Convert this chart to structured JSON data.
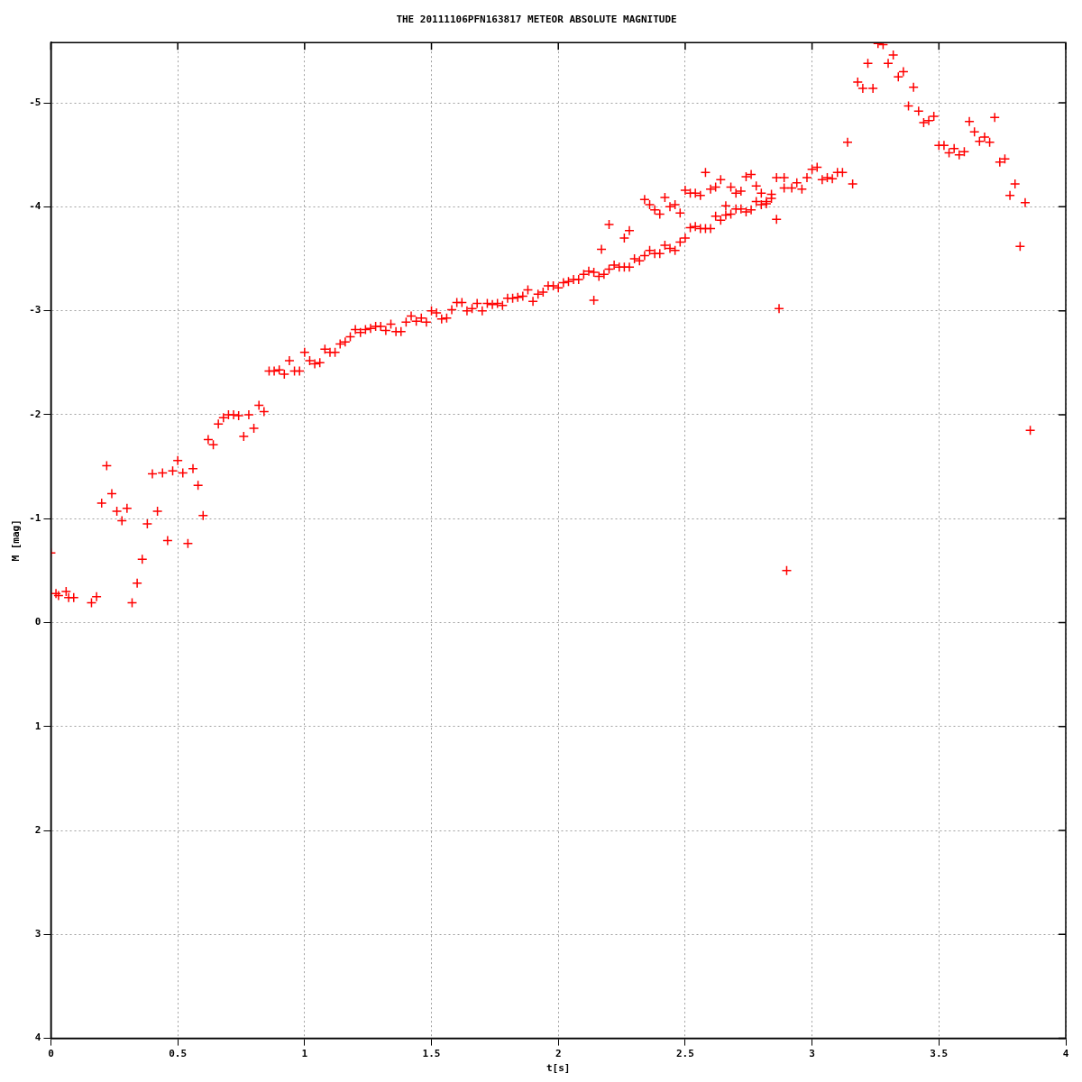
{
  "chart_data": {
    "type": "scatter",
    "title": "THE 20111106PFN163817 METEOR ABSOLUTE MAGNITUDE",
    "xlabel": "t[s]",
    "ylabel": "M [mag]",
    "xlim": [
      0,
      4
    ],
    "xticks": [
      0,
      0.5,
      1,
      1.5,
      2,
      2.5,
      3,
      3.5,
      4
    ],
    "ylim": [
      4,
      -5.58
    ],
    "yticks": [
      -5,
      -4,
      -3,
      -2,
      -1,
      0,
      1,
      2,
      3,
      4
    ],
    "grid": true,
    "legend": false,
    "marker": "cross",
    "series": [
      {
        "color": "#ff0000",
        "x": [
          0,
          0.02,
          0.03,
          0.06,
          0.07,
          0.09,
          0.16,
          0.18,
          0.2,
          0.22,
          0.24,
          0.26,
          0.28,
          0.3,
          0.32,
          0.34,
          0.36,
          0.38,
          0.4,
          0.42,
          0.44,
          0.46,
          0.48,
          0.5,
          0.52,
          0.54,
          0.56,
          0.58,
          0.6,
          0.62,
          0.64,
          0.66,
          0.68,
          0.7,
          0.72,
          0.74,
          0.76,
          0.78,
          0.8,
          0.82,
          0.84,
          0.86,
          0.88,
          0.9,
          0.92,
          0.94,
          0.96,
          0.98,
          1,
          1.02,
          1.04,
          1.06,
          1.08,
          1.1,
          1.12,
          1.14,
          1.16,
          1.18,
          1.2,
          1.22,
          1.24,
          1.26,
          1.28,
          1.3,
          1.32,
          1.34,
          1.36,
          1.38,
          1.4,
          1.42,
          1.44,
          1.46,
          1.48,
          1.5,
          1.52,
          1.54,
          1.56,
          1.58,
          1.6,
          1.62,
          1.64,
          1.66,
          1.68,
          1.7,
          1.72,
          1.74,
          1.76,
          1.78,
          1.8,
          1.82,
          1.84,
          1.86,
          1.88,
          1.9,
          1.92,
          1.94,
          1.96,
          1.98,
          2,
          2.02,
          2.04,
          2.06,
          2.08,
          2.1,
          2.12,
          2.14,
          2.14,
          2.16,
          2.17,
          2.18,
          2.2,
          2.2,
          2.22,
          2.24,
          2.26,
          2.26,
          2.28,
          2.28,
          2.3,
          2.32,
          2.34,
          2.34,
          2.36,
          2.36,
          2.38,
          2.38,
          2.4,
          2.4,
          2.42,
          2.42,
          2.44,
          2.44,
          2.46,
          2.46,
          2.48,
          2.48,
          2.5,
          2.5,
          2.52,
          2.52,
          2.54,
          2.54,
          2.56,
          2.56,
          2.58,
          2.58,
          2.6,
          2.6,
          2.62,
          2.62,
          2.64,
          2.64,
          2.66,
          2.66,
          2.68,
          2.68,
          2.7,
          2.7,
          2.72,
          2.72,
          2.74,
          2.74,
          2.76,
          2.76,
          2.78,
          2.78,
          2.8,
          2.8,
          2.82,
          2.82,
          2.84,
          2.84,
          2.86,
          2.86,
          2.87,
          2.89,
          2.89,
          2.9,
          2.92,
          2.94,
          2.96,
          2.98,
          3,
          3.02,
          3.04,
          3.06,
          3.08,
          3.1,
          3.12,
          3.14,
          3.16,
          3.18,
          3.2,
          3.22,
          3.24,
          3.26,
          3.28,
          3.3,
          3.32,
          3.34,
          3.36,
          3.38,
          3.4,
          3.42,
          3.44,
          3.46,
          3.48,
          3.5,
          3.52,
          3.54,
          3.56,
          3.58,
          3.6,
          3.62,
          3.64,
          3.66,
          3.68,
          3.7,
          3.72,
          3.74,
          3.76,
          3.78,
          3.8,
          3.82,
          3.84,
          3.86
        ],
        "values": [
          -0.67,
          -0.28,
          -0.26,
          -0.3,
          -0.24,
          -0.24,
          -0.19,
          -0.25,
          -1.15,
          -1.51,
          -1.24,
          -1.07,
          -0.98,
          -1.1,
          -0.19,
          -0.38,
          -0.61,
          -0.95,
          -1.43,
          -1.07,
          -1.44,
          -0.79,
          -1.46,
          -1.56,
          -1.44,
          -0.76,
          -1.48,
          -1.32,
          -1.03,
          -1.76,
          -1.71,
          -1.91,
          -1.97,
          -2,
          -2,
          -1.99,
          -1.79,
          -2,
          -1.87,
          -2.09,
          -2.03,
          -2.42,
          -2.42,
          -2.43,
          -2.39,
          -2.52,
          -2.42,
          -2.42,
          -2.6,
          -2.52,
          -2.49,
          -2.5,
          -2.63,
          -2.6,
          -2.6,
          -2.68,
          -2.7,
          -2.75,
          -2.82,
          -2.79,
          -2.82,
          -2.83,
          -2.85,
          -2.85,
          -2.81,
          -2.87,
          -2.8,
          -2.8,
          -2.89,
          -2.95,
          -2.9,
          -2.93,
          -2.89,
          -3,
          -2.98,
          -2.92,
          -2.93,
          -3.01,
          -3.08,
          -3.08,
          -3,
          -3.02,
          -3.07,
          -3,
          -3.07,
          -3.06,
          -3.07,
          -3.05,
          -3.12,
          -3.12,
          -3.13,
          -3.14,
          -3.2,
          -3.09,
          -3.16,
          -3.18,
          -3.24,
          -3.24,
          -3.22,
          -3.27,
          -3.28,
          -3.3,
          -3.3,
          -3.35,
          -3.38,
          -3.1,
          -3.37,
          -3.33,
          -3.59,
          -3.35,
          -3.83,
          -3.4,
          -3.44,
          -3.42,
          -3.7,
          -3.42,
          -3.77,
          -3.42,
          -3.5,
          -3.48,
          -4.07,
          -3.53,
          -4.02,
          -3.58,
          -3.97,
          -3.55,
          -3.93,
          -3.55,
          -4.09,
          -3.63,
          -4,
          -3.6,
          -4.02,
          -3.58,
          -3.94,
          -3.66,
          -4.16,
          -3.7,
          -4.13,
          -3.8,
          -4.13,
          -3.81,
          -4.11,
          -3.79,
          -4.33,
          -3.79,
          -4.17,
          -3.79,
          -4.19,
          -3.91,
          -4.26,
          -3.87,
          -4.01,
          -3.92,
          -4.19,
          -3.93,
          -4.13,
          -3.98,
          -4.15,
          -3.98,
          -4.29,
          -3.95,
          -4.31,
          -3.97,
          -4.2,
          -4.05,
          -4.13,
          -4.02,
          -4.05,
          -4.03,
          -4.12,
          -4.08,
          -4.28,
          -3.88,
          -3.02,
          -4.18,
          -4.28,
          -0.5,
          -4.18,
          -4.23,
          -4.17,
          -4.28,
          -4.36,
          -4.38,
          -4.26,
          -4.28,
          -4.27,
          -4.33,
          -4.33,
          -4.62,
          -4.22,
          -5.2,
          -5.14,
          -5.38,
          -5.14,
          -5.57,
          -5.56,
          -5.38,
          -5.46,
          -5.25,
          -5.3,
          -4.97,
          -5.15,
          -4.92,
          -4.81,
          -4.83,
          -4.87,
          -4.59,
          -4.59,
          -4.52,
          -4.56,
          -4.5,
          -4.53,
          -4.82,
          -4.72,
          -4.63,
          -4.67,
          -4.62,
          -4.86,
          -4.43,
          -4.46,
          -4.11,
          -4.22,
          -3.62,
          -4.04,
          -1.85
        ]
      }
    ]
  }
}
